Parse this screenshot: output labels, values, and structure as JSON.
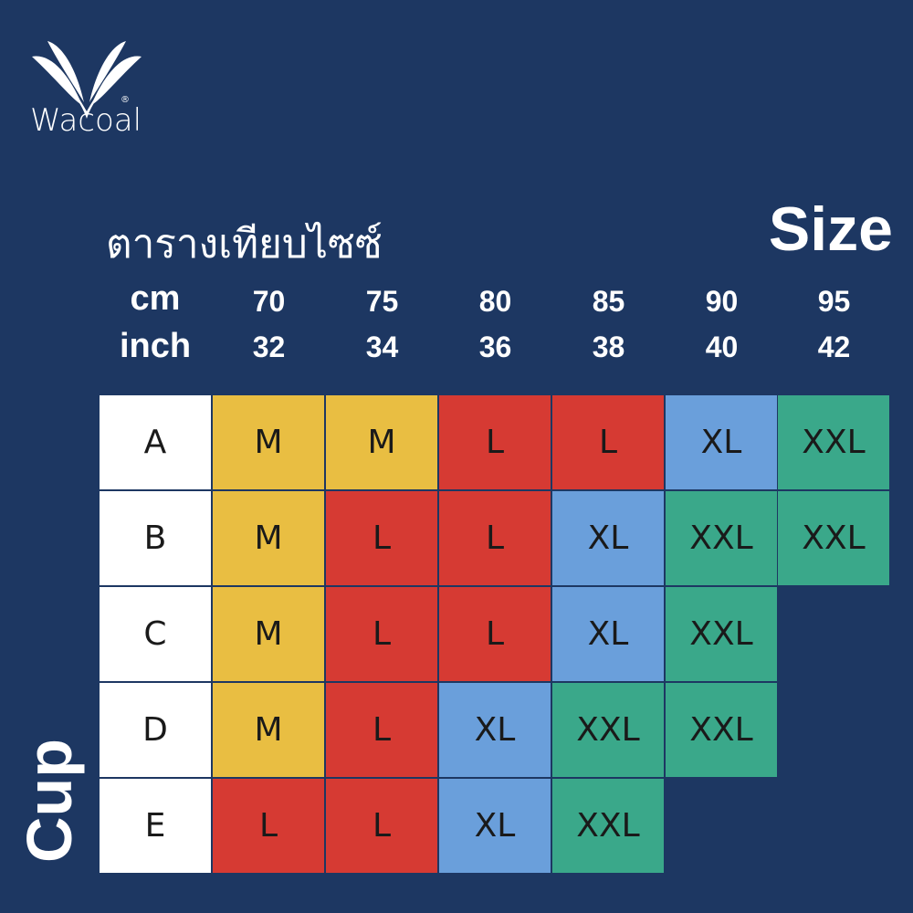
{
  "brand": {
    "name": "Wacoal",
    "registered": "®"
  },
  "title_thai": "ตารางเทียบไซซ์",
  "title_size": "Size",
  "units": {
    "cm": "cm",
    "inch": "inch"
  },
  "columns": [
    {
      "cm": "70",
      "inch": "32"
    },
    {
      "cm": "75",
      "inch": "34"
    },
    {
      "cm": "80",
      "inch": "36"
    },
    {
      "cm": "85",
      "inch": "38"
    },
    {
      "cm": "90",
      "inch": "40"
    },
    {
      "cm": "95",
      "inch": "42"
    }
  ],
  "axis_label_cup": "Cup",
  "rows": [
    {
      "cup": "A",
      "sizes": [
        "M",
        "M",
        "L",
        "L",
        "XL",
        "XXL"
      ]
    },
    {
      "cup": "B",
      "sizes": [
        "M",
        "L",
        "L",
        "XL",
        "XXL",
        "XXL"
      ]
    },
    {
      "cup": "C",
      "sizes": [
        "M",
        "L",
        "L",
        "XL",
        "XXL"
      ]
    },
    {
      "cup": "D",
      "sizes": [
        "M",
        "L",
        "XL",
        "XXL",
        "XXL"
      ]
    },
    {
      "cup": "E",
      "sizes": [
        "L",
        "L",
        "XL",
        "XXL"
      ]
    }
  ],
  "colors": {
    "background": "#1d3762",
    "cup_cell": "#ffffff",
    "M": "#e9be42",
    "L": "#d63a33",
    "XL": "#6a9fdb",
    "XXL": "#3aa88a"
  }
}
